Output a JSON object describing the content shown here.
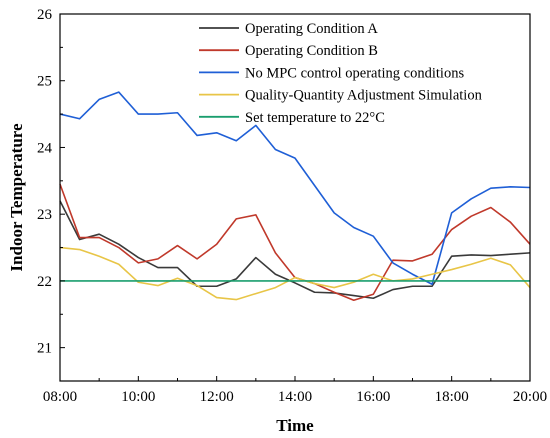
{
  "chart_data": {
    "type": "line",
    "title": "",
    "xlabel": "Time",
    "ylabel": "Indoor Temperature",
    "xlim": [
      8,
      20
    ],
    "ylim": [
      20.5,
      26
    ],
    "x_ticks": [
      8,
      10,
      12,
      14,
      16,
      18,
      20
    ],
    "x_tick_labels": [
      "08:00",
      "10:00",
      "12:00",
      "14:00",
      "16:00",
      "18:00",
      "20:00"
    ],
    "y_ticks": [
      21,
      22,
      23,
      24,
      25,
      26
    ],
    "y_tick_labels": [
      "21",
      "22",
      "23",
      "24",
      "25",
      "26"
    ],
    "grid": false,
    "legend_position": "top-right",
    "series": [
      {
        "name": "Operating Condition A",
        "color": "#3a3a3a",
        "x": [
          8,
          8.5,
          9,
          9.5,
          10,
          10.5,
          11,
          11.5,
          12,
          12.5,
          13,
          13.5,
          14,
          14.5,
          15,
          15.5,
          16,
          16.5,
          17,
          17.5,
          18,
          18.5,
          19,
          19.5,
          20
        ],
        "values": [
          23.2,
          22.62,
          22.7,
          22.55,
          22.35,
          22.2,
          22.2,
          21.92,
          21.92,
          22.03,
          22.35,
          22.1,
          21.97,
          21.83,
          21.82,
          21.78,
          21.74,
          21.87,
          21.92,
          21.92,
          22.37,
          22.39,
          22.38,
          22.4,
          22.42
        ]
      },
      {
        "name": "Operating Condition B",
        "color": "#c0392b",
        "x": [
          8,
          8.5,
          9,
          9.5,
          10,
          10.5,
          11,
          11.5,
          12,
          12.5,
          13,
          13.5,
          14,
          14.5,
          15,
          15.5,
          16,
          16.5,
          17,
          17.5,
          18,
          18.5,
          19,
          19.5,
          20
        ],
        "values": [
          23.45,
          22.65,
          22.65,
          22.5,
          22.27,
          22.33,
          22.53,
          22.33,
          22.55,
          22.93,
          22.99,
          22.42,
          22.05,
          21.96,
          21.83,
          21.71,
          21.8,
          22.31,
          22.3,
          22.4,
          22.77,
          22.97,
          23.1,
          22.88,
          22.55
        ]
      },
      {
        "name": "No MPC control operating conditions",
        "color": "#1f5fd6",
        "x": [
          8,
          8.5,
          9,
          9.5,
          10,
          10.5,
          11,
          11.5,
          12,
          12.5,
          13,
          13.5,
          14,
          14.5,
          15,
          15.5,
          16,
          16.5,
          17,
          17.5,
          18,
          18.5,
          19,
          19.5,
          20
        ],
        "values": [
          24.5,
          24.43,
          24.72,
          24.83,
          24.5,
          24.5,
          24.52,
          24.18,
          24.22,
          24.1,
          24.33,
          23.97,
          23.84,
          23.43,
          23.02,
          22.8,
          22.67,
          22.27,
          22.1,
          21.95,
          23.02,
          23.23,
          23.39,
          23.41,
          23.4
        ]
      },
      {
        "name": "Quality-Quantity Adjustment Simulation",
        "color": "#e8c547",
        "x": [
          8,
          8.5,
          9,
          9.5,
          10,
          10.5,
          11,
          11.5,
          12,
          12.5,
          13,
          13.5,
          14,
          14.5,
          15,
          15.5,
          16,
          16.5,
          17,
          17.5,
          18,
          18.5,
          19,
          19.5,
          20
        ],
        "values": [
          22.5,
          22.47,
          22.37,
          22.25,
          21.98,
          21.93,
          22.04,
          21.93,
          21.75,
          21.72,
          21.81,
          21.9,
          22.05,
          21.96,
          21.9,
          21.98,
          22.1,
          22.0,
          22.03,
          22.1,
          22.17,
          22.25,
          22.34,
          22.24,
          21.9
        ]
      },
      {
        "name": "Set temperature to 22°C",
        "color": "#1a9e6e",
        "x": [
          8,
          20
        ],
        "values": [
          22,
          22
        ]
      }
    ]
  }
}
